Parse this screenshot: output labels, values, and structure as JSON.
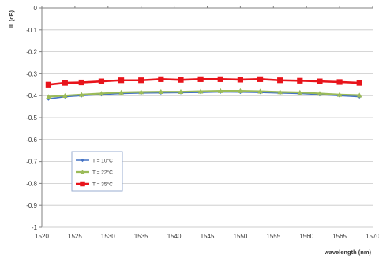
{
  "chart_data": {
    "type": "line",
    "title": "",
    "xlabel": "wavelength (nm)",
    "ylabel": "IL (dB)",
    "xlim": [
      1520,
      1570
    ],
    "ylim": [
      -1,
      0
    ],
    "xticks": [
      1520,
      1525,
      1530,
      1535,
      1540,
      1545,
      1550,
      1555,
      1560,
      1565,
      1570
    ],
    "yticks": [
      0,
      -0.1,
      -0.2,
      -0.3,
      -0.4,
      -0.5,
      -0.6,
      -0.7,
      -0.8,
      -0.9,
      -1
    ],
    "grid": "horizontal",
    "legend_position": "lower-left",
    "series": [
      {
        "name": "T = 10°C",
        "color": "#4472c4",
        "marker": "diamond",
        "x": [
          1521,
          1523.5,
          1526,
          1529,
          1532,
          1535,
          1538,
          1541,
          1544,
          1547,
          1550,
          1553,
          1556,
          1559,
          1562,
          1565,
          1568
        ],
        "y": [
          -0.415,
          -0.405,
          -0.4,
          -0.395,
          -0.39,
          -0.388,
          -0.387,
          -0.386,
          -0.385,
          -0.383,
          -0.384,
          -0.385,
          -0.388,
          -0.39,
          -0.395,
          -0.4,
          -0.405
        ]
      },
      {
        "name": "T = 22°C",
        "color": "#9bbb59",
        "marker": "triangle",
        "x": [
          1521,
          1523.5,
          1526,
          1529,
          1532,
          1535,
          1538,
          1541,
          1544,
          1547,
          1550,
          1553,
          1556,
          1559,
          1562,
          1565,
          1568
        ],
        "y": [
          -0.405,
          -0.4,
          -0.395,
          -0.39,
          -0.385,
          -0.383,
          -0.382,
          -0.382,
          -0.38,
          -0.378,
          -0.378,
          -0.38,
          -0.383,
          -0.385,
          -0.39,
          -0.395,
          -0.398
        ]
      },
      {
        "name": "T = 35°C",
        "color": "#e8141b",
        "marker": "square",
        "x": [
          1521,
          1523.5,
          1526,
          1529,
          1532,
          1535,
          1538,
          1541,
          1544,
          1547,
          1550,
          1553,
          1556,
          1559,
          1562,
          1565,
          1568
        ],
        "y": [
          -0.35,
          -0.342,
          -0.34,
          -0.335,
          -0.33,
          -0.33,
          -0.325,
          -0.328,
          -0.325,
          -0.325,
          -0.327,
          -0.325,
          -0.33,
          -0.332,
          -0.335,
          -0.338,
          -0.342
        ]
      }
    ]
  }
}
